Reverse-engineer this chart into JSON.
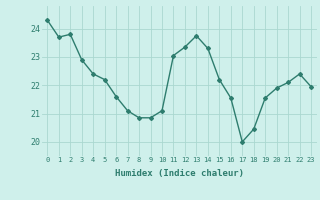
{
  "x": [
    0,
    1,
    2,
    3,
    4,
    5,
    6,
    7,
    8,
    9,
    10,
    11,
    12,
    13,
    14,
    15,
    16,
    17,
    18,
    19,
    20,
    21,
    22,
    23
  ],
  "y": [
    24.3,
    23.7,
    23.8,
    22.9,
    22.4,
    22.2,
    21.6,
    21.1,
    20.85,
    20.85,
    21.1,
    23.05,
    23.35,
    23.75,
    23.3,
    22.2,
    21.55,
    20.0,
    20.45,
    21.55,
    21.9,
    22.1,
    22.4,
    21.95
  ],
  "line_color": "#2e7d6e",
  "marker": "D",
  "marker_size": 2.0,
  "xlabel": "Humidex (Indice chaleur)",
  "ylim": [
    19.5,
    24.8
  ],
  "xlim": [
    -0.5,
    23.5
  ],
  "bg_color": "#cff0eb",
  "grid_color": "#aad8d0",
  "tick_label_color": "#2e7d6e",
  "label_color": "#2e7d6e",
  "yticks": [
    20,
    21,
    22,
    23,
    24
  ],
  "xticks": [
    0,
    1,
    2,
    3,
    4,
    5,
    6,
    7,
    8,
    9,
    10,
    11,
    12,
    13,
    14,
    15,
    16,
    17,
    18,
    19,
    20,
    21,
    22,
    23
  ]
}
